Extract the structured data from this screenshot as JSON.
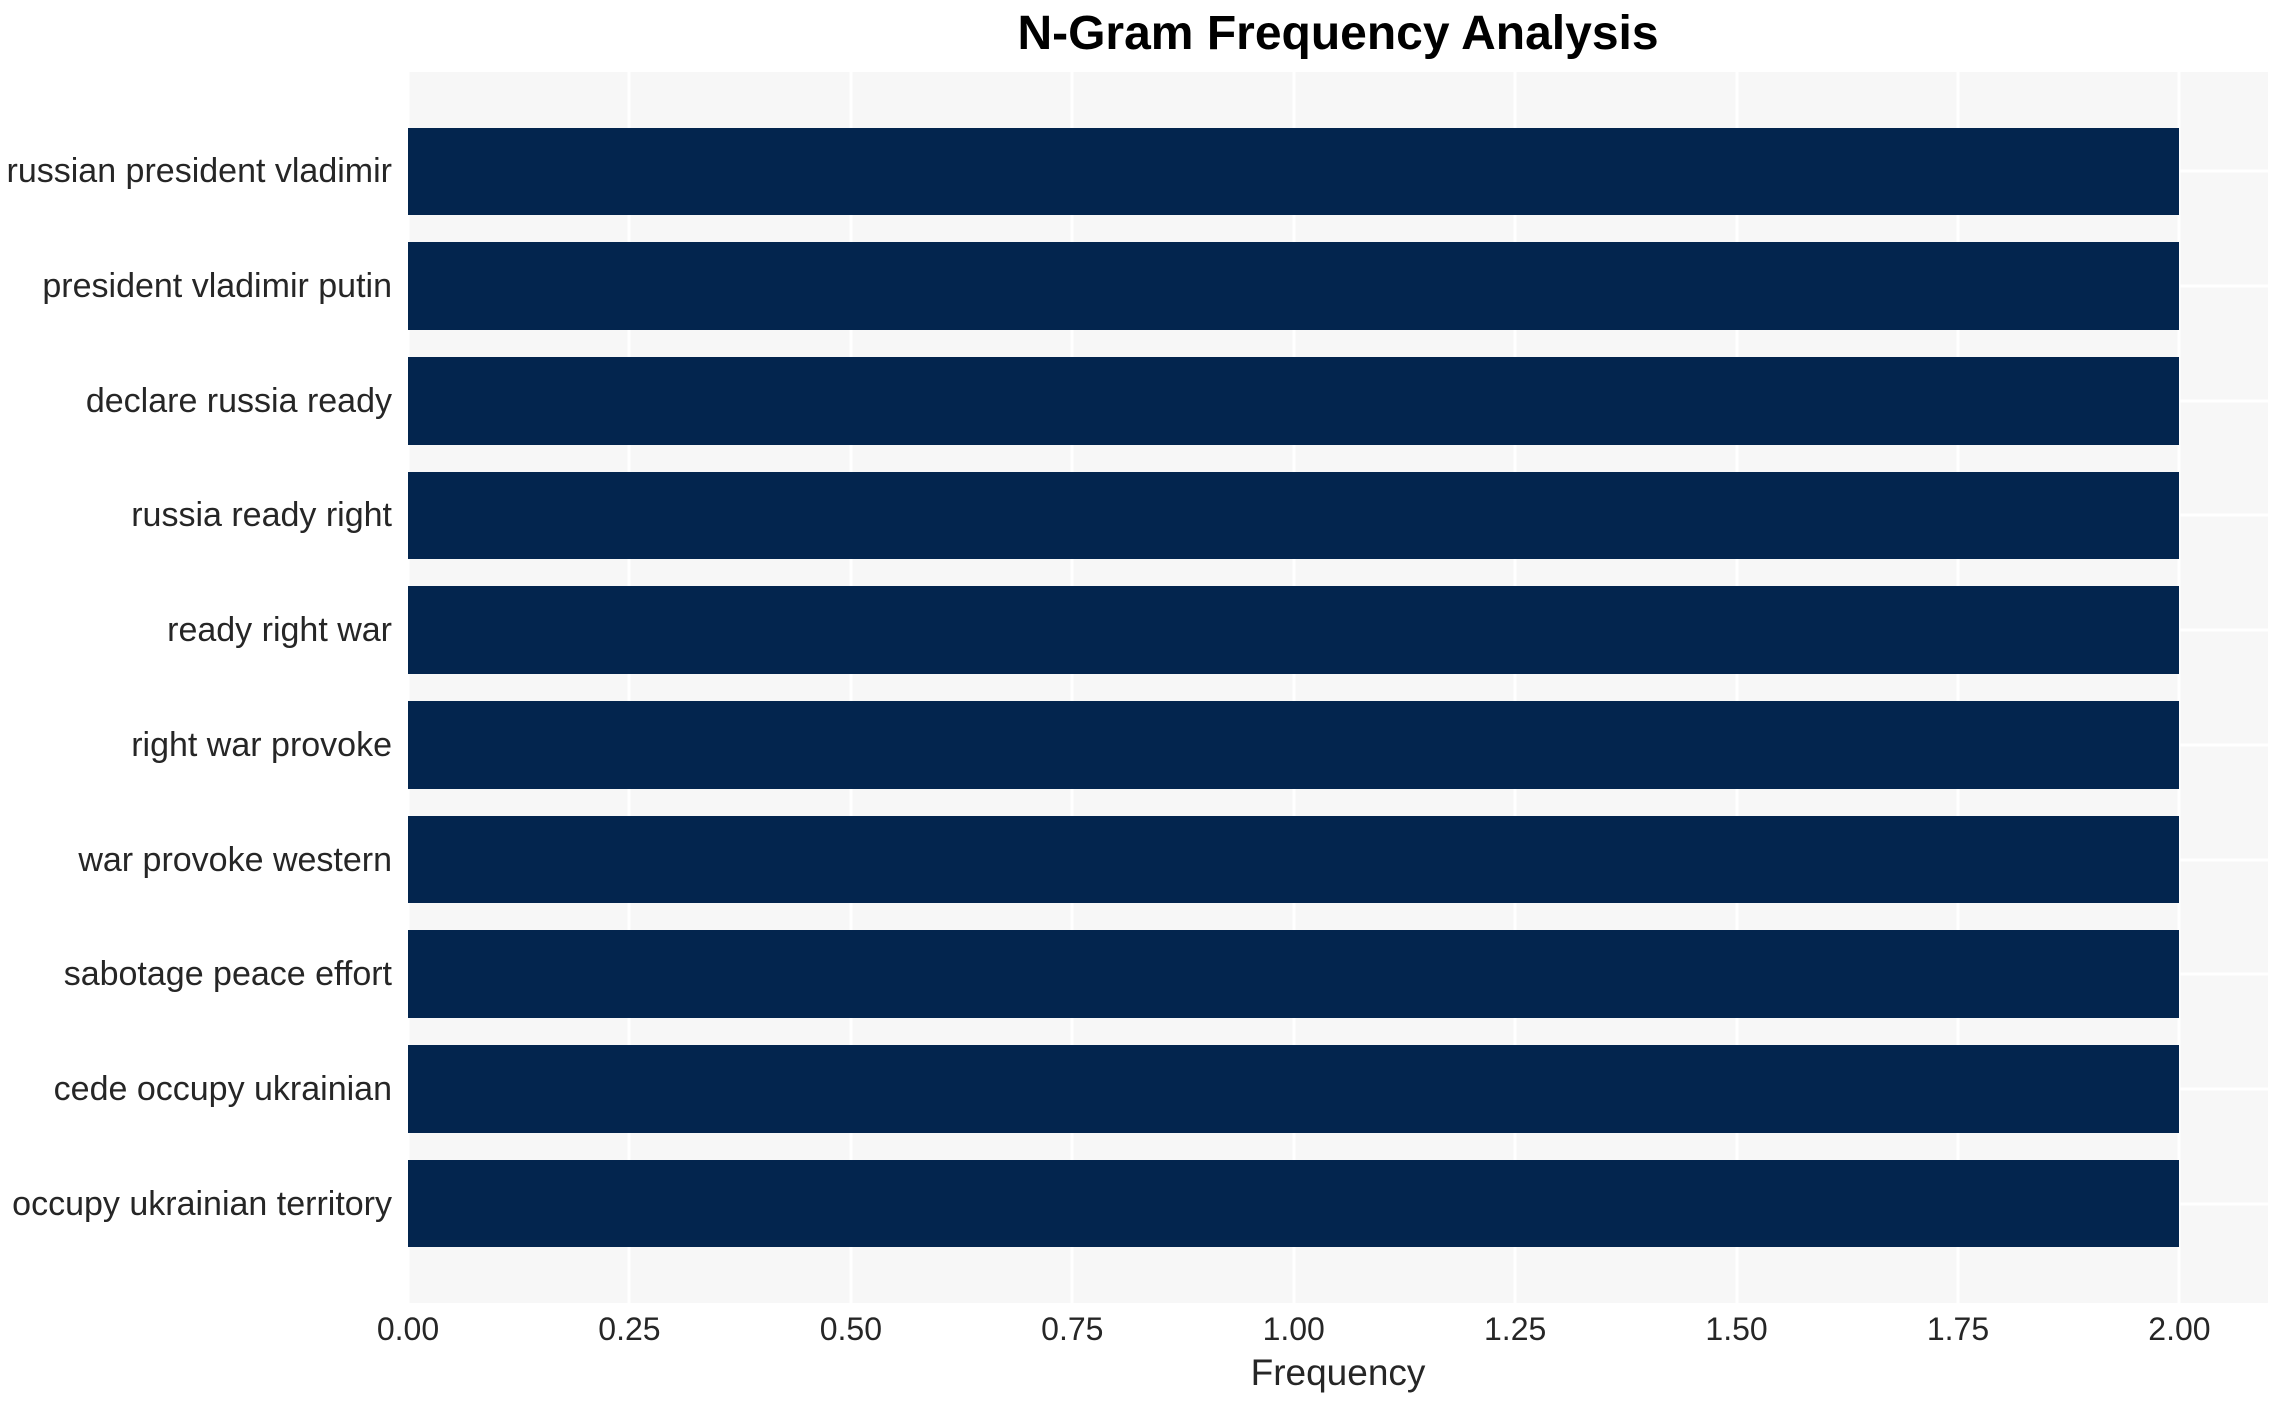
{
  "chart_data": {
    "type": "bar",
    "orientation": "horizontal",
    "title": "N-Gram Frequency Analysis",
    "xlabel": "Frequency",
    "ylabel": "",
    "categories": [
      "russian president vladimir",
      "president vladimir putin",
      "declare russia ready",
      "russia ready right",
      "ready right war",
      "right war provoke",
      "war provoke western",
      "sabotage peace effort",
      "cede occupy ukrainian",
      "occupy ukrainian territory"
    ],
    "values": [
      2,
      2,
      2,
      2,
      2,
      2,
      2,
      2,
      2,
      2
    ],
    "xlim": [
      0,
      2.1
    ],
    "xticks": {
      "values": [
        0.0,
        0.25,
        0.5,
        0.75,
        1.0,
        1.25,
        1.5,
        1.75,
        2.0
      ],
      "labels": [
        "0.00",
        "0.25",
        "0.50",
        "0.75",
        "1.00",
        "1.25",
        "1.50",
        "1.75",
        "2.00"
      ]
    },
    "grid": true,
    "legend": false,
    "colors": {
      "bar": "#03254e",
      "plot_background": "#f7f7f7",
      "gridline": "#ffffff",
      "tick_text": "#262626",
      "title_text": "#000000"
    }
  }
}
